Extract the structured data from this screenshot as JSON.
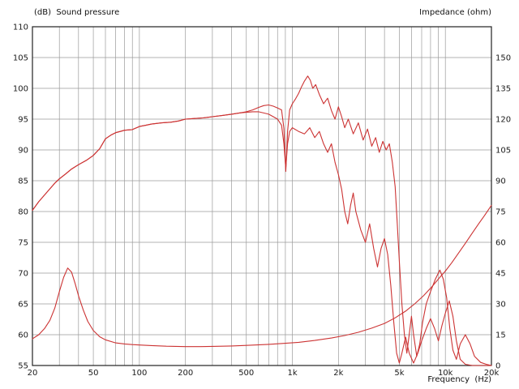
{
  "chart_data": {
    "type": "line",
    "title": "",
    "left_axis": {
      "label": "(dB)  Sound pressure",
      "min": 55,
      "max": 110,
      "ticks": [
        110,
        105,
        100,
        95,
        90,
        85,
        80,
        75,
        70,
        65,
        60,
        55
      ]
    },
    "right_axis": {
      "label": "Impedance (ohm)",
      "min": 0,
      "max": 165,
      "ticks": [
        150,
        135,
        120,
        105,
        90,
        75,
        60,
        45,
        30,
        15,
        0
      ]
    },
    "x_axis": {
      "label": "Frequency  (Hz)",
      "min": 20,
      "max": 20000,
      "scale": "log",
      "tick_labels": [
        {
          "f": 20,
          "label": "20"
        },
        {
          "f": 50,
          "label": "50"
        },
        {
          "f": 100,
          "label": "100"
        },
        {
          "f": 200,
          "label": "200"
        },
        {
          "f": 500,
          "label": "500"
        },
        {
          "f": 1000,
          "label": "1k"
        },
        {
          "f": 2000,
          "label": "2k"
        },
        {
          "f": 5000,
          "label": "5k"
        },
        {
          "f": 10000,
          "label": "10k"
        },
        {
          "f": 20000,
          "label": "20k"
        }
      ]
    },
    "grid": true,
    "grid_color": "#9a9a9a",
    "frame_color": "#222222",
    "curve_color": "#cc3333",
    "legend": "none",
    "series": [
      {
        "name": "spl_curve_1",
        "axis": "left",
        "unit": "dB",
        "points": [
          [
            20,
            80.2
          ],
          [
            22,
            81.6
          ],
          [
            25,
            83.2
          ],
          [
            28,
            84.6
          ],
          [
            30,
            85.3
          ],
          [
            33,
            86.1
          ],
          [
            36,
            86.9
          ],
          [
            40,
            87.6
          ],
          [
            45,
            88.3
          ],
          [
            50,
            89.1
          ],
          [
            55,
            90.2
          ],
          [
            60,
            91.8
          ],
          [
            65,
            92.4
          ],
          [
            70,
            92.8
          ],
          [
            75,
            93.0
          ],
          [
            80,
            93.2
          ],
          [
            90,
            93.3
          ],
          [
            100,
            93.8
          ],
          [
            110,
            94.0
          ],
          [
            120,
            94.2
          ],
          [
            140,
            94.4
          ],
          [
            160,
            94.5
          ],
          [
            180,
            94.7
          ],
          [
            200,
            95.0
          ],
          [
            230,
            95.1
          ],
          [
            260,
            95.2
          ],
          [
            300,
            95.4
          ],
          [
            350,
            95.6
          ],
          [
            400,
            95.8
          ],
          [
            450,
            96.0
          ],
          [
            500,
            96.2
          ],
          [
            550,
            96.5
          ],
          [
            600,
            96.9
          ],
          [
            650,
            97.2
          ],
          [
            700,
            97.3
          ],
          [
            750,
            97.1
          ],
          [
            800,
            96.8
          ],
          [
            850,
            96.5
          ],
          [
            880,
            93.5
          ],
          [
            905,
            86.5
          ],
          [
            930,
            93.0
          ],
          [
            960,
            96.5
          ],
          [
            1000,
            97.5
          ],
          [
            1050,
            98.3
          ],
          [
            1100,
            99.2
          ],
          [
            1150,
            100.3
          ],
          [
            1200,
            101.2
          ],
          [
            1260,
            102.0
          ],
          [
            1310,
            101.3
          ],
          [
            1360,
            100.0
          ],
          [
            1420,
            100.6
          ],
          [
            1500,
            99.0
          ],
          [
            1600,
            97.5
          ],
          [
            1700,
            98.4
          ],
          [
            1800,
            96.4
          ],
          [
            1900,
            95.0
          ],
          [
            2000,
            97.0
          ],
          [
            2100,
            95.4
          ],
          [
            2200,
            93.6
          ],
          [
            2320,
            95.0
          ],
          [
            2500,
            92.6
          ],
          [
            2700,
            94.4
          ],
          [
            2900,
            91.6
          ],
          [
            3100,
            93.4
          ],
          [
            3300,
            90.6
          ],
          [
            3500,
            92.0
          ],
          [
            3700,
            89.6
          ],
          [
            3900,
            91.4
          ],
          [
            4100,
            90.0
          ],
          [
            4300,
            91.0
          ],
          [
            4500,
            88.0
          ],
          [
            4700,
            84.0
          ],
          [
            4850,
            78.0
          ],
          [
            5000,
            72.0
          ],
          [
            5200,
            65.0
          ],
          [
            5400,
            60.0
          ],
          [
            5600,
            57.0
          ],
          [
            5800,
            60.0
          ],
          [
            6000,
            63.0
          ],
          [
            6200,
            60.0
          ],
          [
            6500,
            56.5
          ],
          [
            6800,
            58.5
          ],
          [
            7100,
            62.0
          ],
          [
            7500,
            65.0
          ],
          [
            8000,
            67.0
          ],
          [
            8600,
            69.0
          ],
          [
            9200,
            70.5
          ],
          [
            9700,
            69.0
          ],
          [
            10200,
            66.0
          ],
          [
            10700,
            61.0
          ],
          [
            11200,
            57.5
          ],
          [
            11800,
            56.0
          ],
          [
            12500,
            58.5
          ],
          [
            13500,
            60.0
          ],
          [
            14500,
            58.5
          ],
          [
            15500,
            56.5
          ],
          [
            17000,
            55.5
          ],
          [
            18500,
            55.2
          ],
          [
            20000,
            55.0
          ]
        ]
      },
      {
        "name": "spl_curve_2",
        "axis": "left",
        "unit": "dB",
        "points": [
          [
            20,
            80.2
          ],
          [
            22,
            81.6
          ],
          [
            25,
            83.2
          ],
          [
            28,
            84.6
          ],
          [
            30,
            85.3
          ],
          [
            33,
            86.1
          ],
          [
            36,
            86.9
          ],
          [
            40,
            87.6
          ],
          [
            45,
            88.3
          ],
          [
            50,
            89.1
          ],
          [
            55,
            90.2
          ],
          [
            60,
            91.8
          ],
          [
            65,
            92.4
          ],
          [
            70,
            92.8
          ],
          [
            75,
            93.0
          ],
          [
            80,
            93.2
          ],
          [
            90,
            93.3
          ],
          [
            100,
            93.8
          ],
          [
            110,
            94.0
          ],
          [
            120,
            94.2
          ],
          [
            140,
            94.4
          ],
          [
            160,
            94.5
          ],
          [
            180,
            94.7
          ],
          [
            200,
            95.0
          ],
          [
            230,
            95.1
          ],
          [
            260,
            95.2
          ],
          [
            300,
            95.4
          ],
          [
            350,
            95.6
          ],
          [
            400,
            95.8
          ],
          [
            450,
            96.0
          ],
          [
            500,
            96.1
          ],
          [
            550,
            96.2
          ],
          [
            600,
            96.2
          ],
          [
            650,
            96.0
          ],
          [
            700,
            95.8
          ],
          [
            750,
            95.4
          ],
          [
            800,
            95.0
          ],
          [
            850,
            94.0
          ],
          [
            880,
            91.0
          ],
          [
            905,
            87.0
          ],
          [
            930,
            91.0
          ],
          [
            960,
            93.0
          ],
          [
            1000,
            93.6
          ],
          [
            1100,
            93.0
          ],
          [
            1200,
            92.6
          ],
          [
            1300,
            93.6
          ],
          [
            1400,
            92.0
          ],
          [
            1500,
            93.0
          ],
          [
            1600,
            91.0
          ],
          [
            1700,
            89.6
          ],
          [
            1800,
            91.0
          ],
          [
            1900,
            88.0
          ],
          [
            2000,
            86.0
          ],
          [
            2100,
            83.6
          ],
          [
            2200,
            80.0
          ],
          [
            2300,
            78.0
          ],
          [
            2400,
            81.0
          ],
          [
            2500,
            83.0
          ],
          [
            2600,
            80.0
          ],
          [
            2800,
            77.0
          ],
          [
            3000,
            75.0
          ],
          [
            3200,
            78.0
          ],
          [
            3400,
            74.0
          ],
          [
            3600,
            71.0
          ],
          [
            3800,
            74.0
          ],
          [
            4000,
            75.6
          ],
          [
            4200,
            73.0
          ],
          [
            4400,
            68.0
          ],
          [
            4600,
            62.0
          ],
          [
            4800,
            57.0
          ],
          [
            5000,
            55.4
          ],
          [
            5200,
            57.0
          ],
          [
            5500,
            59.6
          ],
          [
            5800,
            57.0
          ],
          [
            6200,
            55.4
          ],
          [
            6600,
            57.0
          ],
          [
            7000,
            59.0
          ],
          [
            7500,
            61.0
          ],
          [
            8000,
            62.6
          ],
          [
            8500,
            61.0
          ],
          [
            9000,
            59.0
          ],
          [
            9500,
            61.5
          ],
          [
            10000,
            63.5
          ],
          [
            10600,
            65.5
          ],
          [
            11200,
            63.0
          ],
          [
            11800,
            59.0
          ],
          [
            12500,
            56.0
          ],
          [
            13500,
            55.2
          ],
          [
            15000,
            55.0
          ],
          [
            17000,
            55.0
          ],
          [
            20000,
            55.0
          ]
        ]
      },
      {
        "name": "impedance_curve",
        "axis": "right",
        "unit": "ohm",
        "points": [
          [
            20,
            13
          ],
          [
            22,
            15
          ],
          [
            24,
            18
          ],
          [
            26,
            22
          ],
          [
            28,
            28
          ],
          [
            30,
            36
          ],
          [
            32,
            43
          ],
          [
            34,
            47.5
          ],
          [
            36,
            45.5
          ],
          [
            38,
            40
          ],
          [
            40,
            34
          ],
          [
            43,
            27
          ],
          [
            46,
            21.5
          ],
          [
            50,
            17
          ],
          [
            55,
            14
          ],
          [
            60,
            12.5
          ],
          [
            70,
            11
          ],
          [
            80,
            10.5
          ],
          [
            90,
            10.2
          ],
          [
            100,
            10
          ],
          [
            120,
            9.7
          ],
          [
            150,
            9.4
          ],
          [
            200,
            9.2
          ],
          [
            250,
            9.2
          ],
          [
            300,
            9.3
          ],
          [
            400,
            9.5
          ],
          [
            500,
            9.8
          ],
          [
            700,
            10.3
          ],
          [
            900,
            10.8
          ],
          [
            1100,
            11.3
          ],
          [
            1400,
            12.2
          ],
          [
            1800,
            13.4
          ],
          [
            2200,
            14.6
          ],
          [
            2700,
            16.2
          ],
          [
            3300,
            18.2
          ],
          [
            4000,
            20.5
          ],
          [
            4700,
            23.2
          ],
          [
            5500,
            26.5
          ],
          [
            6300,
            30
          ],
          [
            7200,
            34
          ],
          [
            8200,
            38.5
          ],
          [
            9200,
            43
          ],
          [
            10000,
            46
          ],
          [
            11000,
            50
          ],
          [
            12000,
            54
          ],
          [
            13500,
            59.5
          ],
          [
            15000,
            64.5
          ],
          [
            16500,
            69
          ],
          [
            18000,
            73
          ],
          [
            20000,
            78
          ]
        ]
      }
    ]
  }
}
